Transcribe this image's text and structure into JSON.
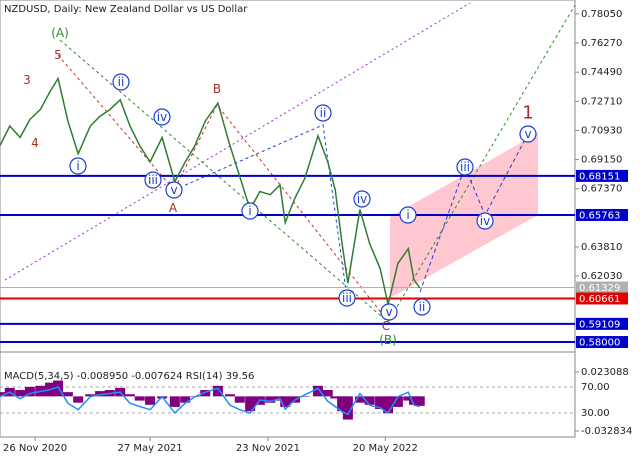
{
  "chart_data": [
    {
      "type": "line",
      "title": "NZDUSD, Daily:  New Zealand Dollar vs US Dollar",
      "x": [
        0,
        1.7,
        3.5,
        5.2,
        7,
        8.7,
        10.1,
        11.8,
        13.6,
        15.7,
        17.4,
        19.1,
        20.9,
        22.6,
        24.3,
        26.1,
        28.2,
        30.4,
        32.2,
        33.9,
        35.7,
        37.9,
        40,
        41.7,
        43.5,
        45.2,
        47,
        48.7,
        49.6,
        51.3,
        53,
        55.3,
        57,
        58.3,
        59.5,
        60.5,
        62.6,
        64.3,
        66.1,
        67.5,
        69.2,
        71,
        72,
        73
      ],
      "series": [
        {
          "color": "#2e7d32",
          "values": [
            0.7,
            0.712,
            0.705,
            0.716,
            0.722,
            0.733,
            0.741,
            0.715,
            0.695,
            0.712,
            0.718,
            0.722,
            0.728,
            0.712,
            0.7,
            0.69,
            0.705,
            0.678,
            0.69,
            0.7,
            0.715,
            0.726,
            0.7,
            0.681,
            0.661,
            0.672,
            0.67,
            0.676,
            0.653,
            0.668,
            0.68,
            0.706,
            0.69,
            0.673,
            0.64,
            0.616,
            0.661,
            0.64,
            0.625,
            0.603,
            0.628,
            0.637,
            0.618,
            0.613
          ]
        }
      ],
      "xlim": [
        0,
        100
      ],
      "xticks": [
        {
          "value": 6.1,
          "label": "26 Nov 2020"
        },
        {
          "value": 26.1,
          "label": "27 May 2021"
        },
        {
          "value": 46.6,
          "label": "23 Nov 2021"
        },
        {
          "value": 67,
          "label": "20 May 2022"
        }
      ],
      "ylim": [
        0.5739,
        0.789
      ],
      "yticks": [
        {
          "value": 0.7805,
          "label": "0.78050"
        },
        {
          "value": 0.7627,
          "label": "0.76270"
        },
        {
          "value": 0.7449,
          "label": "0.74490"
        },
        {
          "value": 0.7271,
          "label": "0.72710"
        },
        {
          "value": 0.7093,
          "label": "0.70930"
        },
        {
          "value": 0.6915,
          "label": "0.69150"
        },
        {
          "value": 0.6737,
          "label": "0.67370"
        },
        {
          "value": 0.6381,
          "label": "0.63810"
        },
        {
          "value": 0.6203,
          "label": "0.62030"
        }
      ],
      "levels": [
        {
          "value": 0.68151,
          "label": "0.68151",
          "color": "#0000cc"
        },
        {
          "value": 0.65763,
          "label": "0.65763",
          "color": "#0000cc"
        },
        {
          "value": 0.61329,
          "label": "0.61329",
          "color": "#b0b0b0"
        },
        {
          "value": 0.60661,
          "label": "0.60661",
          "color": "#e00000"
        },
        {
          "value": 0.59109,
          "label": "0.59109",
          "color": "#0000cc"
        },
        {
          "value": 0.58,
          "label": "0.58000",
          "color": "#0000cc"
        }
      ],
      "annotations": [
        {
          "text": "(A)",
          "color": "#2e8b2e",
          "circled": false
        },
        {
          "text": "5",
          "color": "#a0302a",
          "circled": false
        },
        {
          "text": "3",
          "color": "#a0302a",
          "circled": false
        },
        {
          "text": "4",
          "color": "#a0302a",
          "circled": false
        },
        {
          "text": "i",
          "color": "#1c3fd0",
          "circled": true
        },
        {
          "text": "ii",
          "color": "#1c3fd0",
          "circled": true
        },
        {
          "text": "iii",
          "color": "#1c3fd0",
          "circled": true
        },
        {
          "text": "iv",
          "color": "#1c3fd0",
          "circled": true
        },
        {
          "text": "v",
          "color": "#1c3fd0",
          "circled": true
        },
        {
          "text": "A",
          "color": "#a0302a",
          "circled": false
        },
        {
          "text": "B",
          "color": "#a0302a",
          "circled": false
        },
        {
          "text": "i",
          "color": "#1c3fd0",
          "circled": true
        },
        {
          "text": "ii",
          "color": "#1c3fd0",
          "circled": true
        },
        {
          "text": "iii",
          "color": "#1c3fd0",
          "circled": true
        },
        {
          "text": "iv",
          "color": "#1c3fd0",
          "circled": true
        },
        {
          "text": "v",
          "color": "#1c3fd0",
          "circled": true
        },
        {
          "text": "C",
          "color": "#a0302a",
          "circled": false
        },
        {
          "text": "(B)",
          "color": "#2e8b2e",
          "circled": false
        },
        {
          "text": "i",
          "color": "#1c3fd0",
          "circled": true
        },
        {
          "text": "ii",
          "color": "#1c3fd0",
          "circled": true
        },
        {
          "text": "iii",
          "color": "#1c3fd0",
          "circled": true
        },
        {
          "text": "iv",
          "color": "#1c3fd0",
          "circled": true
        },
        {
          "text": "v",
          "color": "#1c3fd0",
          "circled": true
        },
        {
          "text": "1",
          "color": "#a0302a",
          "circled": false
        }
      ]
    },
    {
      "type": "bar",
      "title": "MACD(5,34,5) -0.008950 -0.007624 RSI(14) 39.56",
      "x": [
        0,
        1.7,
        3.5,
        5.2,
        7,
        8.7,
        10.1,
        11.8,
        13.6,
        15.7,
        17.4,
        19.1,
        20.9,
        22.6,
        24.3,
        26.1,
        28.2,
        30.4,
        32.2,
        33.9,
        35.7,
        37.9,
        40,
        41.7,
        43.5,
        45.2,
        47,
        48.7,
        49.6,
        51.3,
        53,
        55.3,
        57,
        58.3,
        59.5,
        60.5,
        62.6,
        64.3,
        66.1,
        67.5,
        69.2,
        71,
        72,
        73
      ],
      "xlim": [
        0,
        100
      ],
      "series": [
        {
          "color": "#800080",
          "values": [
            0.004,
            0.008,
            0.006,
            0.009,
            0.01,
            0.013,
            0.015,
            0.004,
            -0.006,
            0.002,
            0.005,
            0.006,
            0.008,
            0.002,
            -0.004,
            -0.008,
            -0.002,
            -0.01,
            -0.006,
            0.0,
            0.006,
            0.01,
            0.002,
            -0.006,
            -0.014,
            -0.008,
            -0.006,
            -0.004,
            -0.01,
            -0.006,
            0.0,
            0.01,
            0.006,
            -0.002,
            -0.014,
            -0.022,
            -0.006,
            -0.008,
            -0.012,
            -0.016,
            -0.01,
            -0.004,
            -0.008,
            -0.009
          ]
        },
        {
          "color": "#1e90ff",
          "axis": "y2",
          "values": [
            55,
            62,
            52,
            60,
            63,
            66,
            70,
            45,
            35,
            55,
            58,
            60,
            62,
            45,
            40,
            35,
            55,
            30,
            45,
            55,
            62,
            68,
            42,
            35,
            30,
            50,
            48,
            52,
            36,
            50,
            58,
            68,
            48,
            40,
            32,
            28,
            60,
            42,
            38,
            30,
            55,
            62,
            42,
            40
          ]
        }
      ],
      "ylim": [
        -0.03852,
        0.02972
      ],
      "yticks": [
        0.023088,
        -0.032834
      ],
      "y2lim": [
        -6.9,
        103.8
      ],
      "y2ticks": [
        {
          "value": 70,
          "label": "70.00"
        },
        {
          "value": 30,
          "label": "30.00"
        }
      ]
    }
  ]
}
